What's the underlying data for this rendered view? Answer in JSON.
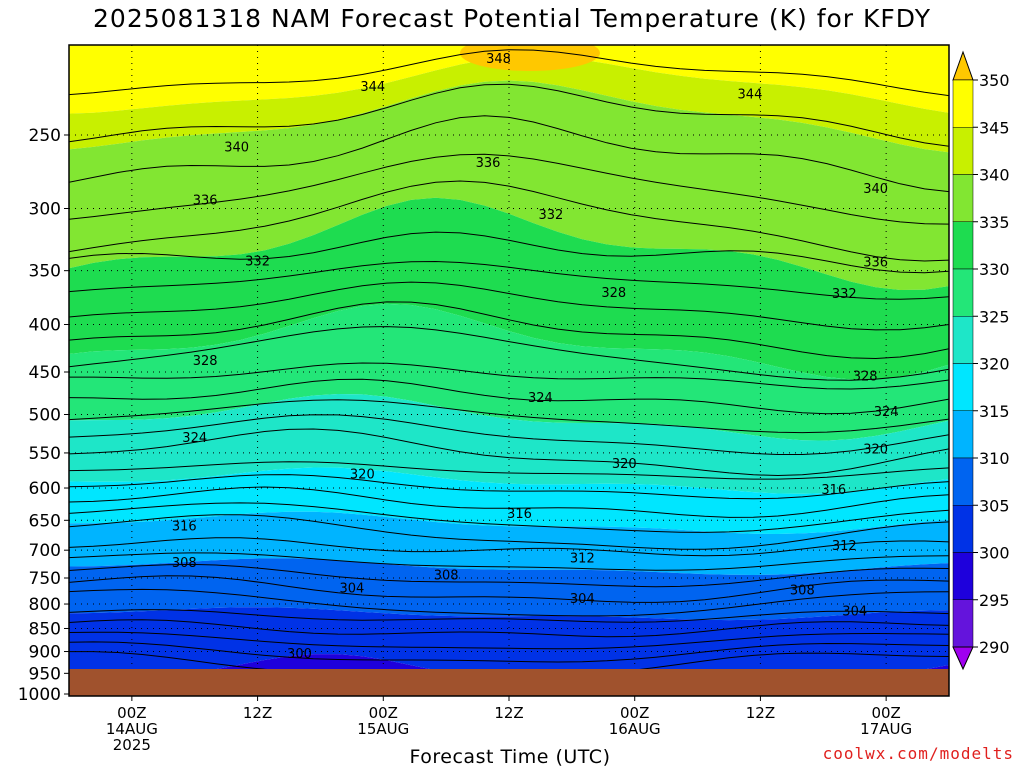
{
  "chart_data": {
    "type": "heatmap",
    "title": "2025081318 NAM Forecast Potential Temperature (K) for KFDY",
    "xlabel": "Forecast Time (UTC)",
    "ylabel": "",
    "credit": "coolwx.com/modelts",
    "x_ticks": [
      {
        "hour": 6,
        "line1": "00Z",
        "line2": "14AUG",
        "line3": "2025"
      },
      {
        "hour": 18,
        "line1": "12Z",
        "line2": "",
        "line3": ""
      },
      {
        "hour": 30,
        "line1": "00Z",
        "line2": "15AUG",
        "line3": ""
      },
      {
        "hour": 42,
        "line1": "12Z",
        "line2": "",
        "line3": ""
      },
      {
        "hour": 54,
        "line1": "00Z",
        "line2": "16AUG",
        "line3": ""
      },
      {
        "hour": 66,
        "line1": "12Z",
        "line2": "",
        "line3": ""
      },
      {
        "hour": 78,
        "line1": "00Z",
        "line2": "17AUG",
        "line3": ""
      }
    ],
    "xlim": [
      0,
      84
    ],
    "y_ticks": [
      "250",
      "300",
      "350",
      "400",
      "450",
      "500",
      "550",
      "600",
      "650",
      "700",
      "750",
      "800",
      "850",
      "900",
      "950",
      "1000"
    ],
    "ylim": [
      1000,
      200
    ],
    "colorbar": {
      "levels": [
        "350",
        "345",
        "340",
        "335",
        "330",
        "325",
        "320",
        "315",
        "310",
        "305",
        "300",
        "295",
        "290"
      ],
      "colors": [
        "#ffc800",
        "#ffff00",
        "#c8f000",
        "#82e632",
        "#1edc50",
        "#23e678",
        "#1ee6c8",
        "#00e6ff",
        "#00b4ff",
        "#0064f0",
        "#0032e6",
        "#1e00dc",
        "#6414dc",
        "#a000f0"
      ]
    },
    "contour_labels": [
      {
        "text": "348",
        "hour": 41,
        "hPa": 207
      },
      {
        "text": "344",
        "hour": 29,
        "hPa": 222
      },
      {
        "text": "344",
        "hour": 65,
        "hPa": 226
      },
      {
        "text": "340",
        "hour": 16,
        "hPa": 258
      },
      {
        "text": "340",
        "hour": 77,
        "hPa": 286
      },
      {
        "text": "336",
        "hour": 40,
        "hPa": 268
      },
      {
        "text": "336",
        "hour": 13,
        "hPa": 294
      },
      {
        "text": "336",
        "hour": 77,
        "hPa": 343
      },
      {
        "text": "332",
        "hour": 46,
        "hPa": 305
      },
      {
        "text": "332",
        "hour": 18,
        "hPa": 342
      },
      {
        "text": "332",
        "hour": 74,
        "hPa": 371
      },
      {
        "text": "328",
        "hour": 52,
        "hPa": 370
      },
      {
        "text": "328",
        "hour": 13,
        "hPa": 438
      },
      {
        "text": "328",
        "hour": 76,
        "hPa": 455
      },
      {
        "text": "324",
        "hour": 45,
        "hPa": 480
      },
      {
        "text": "324",
        "hour": 12,
        "hPa": 530
      },
      {
        "text": "324",
        "hour": 78,
        "hPa": 497
      },
      {
        "text": "320",
        "hour": 28,
        "hPa": 580
      },
      {
        "text": "320",
        "hour": 53,
        "hPa": 565
      },
      {
        "text": "320",
        "hour": 77,
        "hPa": 545
      },
      {
        "text": "316",
        "hour": 43,
        "hPa": 640
      },
      {
        "text": "316",
        "hour": 11,
        "hPa": 660
      },
      {
        "text": "316",
        "hour": 73,
        "hPa": 603
      },
      {
        "text": "312",
        "hour": 49,
        "hPa": 715
      },
      {
        "text": "312",
        "hour": 74,
        "hPa": 693
      },
      {
        "text": "308",
        "hour": 11,
        "hPa": 723
      },
      {
        "text": "308",
        "hour": 36,
        "hPa": 745
      },
      {
        "text": "308",
        "hour": 70,
        "hPa": 774
      },
      {
        "text": "304",
        "hour": 27,
        "hPa": 770
      },
      {
        "text": "304",
        "hour": 49,
        "hPa": 790
      },
      {
        "text": "304",
        "hour": 75,
        "hPa": 815
      },
      {
        "text": "300",
        "hour": 22,
        "hPa": 905
      }
    ]
  }
}
